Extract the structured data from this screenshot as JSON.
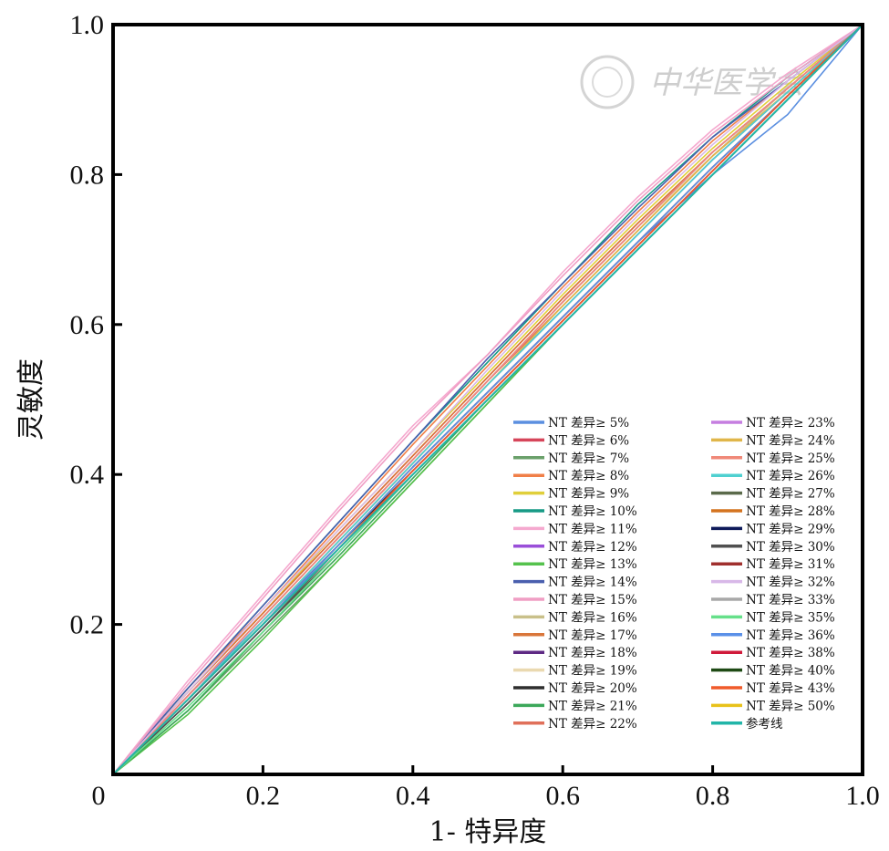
{
  "chart_data": {
    "type": "line",
    "xlabel": "1- 特异度",
    "ylabel": "灵敏度",
    "xlim": [
      0,
      1
    ],
    "ylim": [
      0,
      1
    ],
    "xticks": [
      "0",
      "0.2",
      "0.4",
      "0.6",
      "0.8",
      "1.0"
    ],
    "yticks": [
      "0.2",
      "0.4",
      "0.6",
      "0.8",
      "1.0"
    ],
    "grid": false,
    "legend_placement": "bottom-right",
    "watermark": "中华医学会",
    "series": [
      {
        "name": "NT 差异≥ 5%",
        "color": "#5b8fe0",
        "x": [
          0,
          0.1,
          0.2,
          0.3,
          0.4,
          0.5,
          0.6,
          0.7,
          0.8,
          0.9,
          1
        ],
        "y": [
          0,
          0.105,
          0.205,
          0.305,
          0.41,
          0.51,
          0.61,
          0.71,
          0.8,
          0.88,
          1
        ]
      },
      {
        "name": "NT 差异≥ 6%",
        "color": "#d6455a",
        "x": [
          0,
          0.1,
          0.2,
          0.3,
          0.4,
          0.5,
          0.6,
          0.7,
          0.8,
          0.9,
          1
        ],
        "y": [
          0,
          0.11,
          0.215,
          0.32,
          0.425,
          0.53,
          0.635,
          0.735,
          0.83,
          0.915,
          1
        ]
      },
      {
        "name": "NT 差异≥ 7%",
        "color": "#6aa06a",
        "x": [
          0,
          0.1,
          0.2,
          0.3,
          0.4,
          0.5,
          0.6,
          0.7,
          0.8,
          0.9,
          1
        ],
        "y": [
          0,
          0.085,
          0.185,
          0.285,
          0.39,
          0.495,
          0.6,
          0.7,
          0.8,
          0.9,
          1
        ]
      },
      {
        "name": "NT 差异≥ 8%",
        "color": "#f07f48",
        "x": [
          0,
          0.1,
          0.2,
          0.3,
          0.4,
          0.5,
          0.6,
          0.7,
          0.8,
          0.9,
          1
        ],
        "y": [
          0,
          0.115,
          0.22,
          0.33,
          0.44,
          0.545,
          0.65,
          0.75,
          0.845,
          0.925,
          1
        ]
      },
      {
        "name": "NT 差异≥ 9%",
        "color": "#e0cf3a",
        "x": [
          0,
          0.1,
          0.2,
          0.3,
          0.4,
          0.5,
          0.6,
          0.7,
          0.8,
          0.9,
          1
        ],
        "y": [
          0,
          0.11,
          0.215,
          0.325,
          0.43,
          0.535,
          0.64,
          0.74,
          0.835,
          0.92,
          1
        ]
      },
      {
        "name": "NT 差异≥ 10%",
        "color": "#179a85",
        "x": [
          0,
          0.1,
          0.2,
          0.3,
          0.4,
          0.5,
          0.6,
          0.7,
          0.8,
          0.9,
          1
        ],
        "y": [
          0,
          0.115,
          0.225,
          0.335,
          0.445,
          0.55,
          0.655,
          0.76,
          0.85,
          0.93,
          1
        ]
      },
      {
        "name": "NT 差异≥ 11%",
        "color": "#f5a9cf",
        "x": [
          0,
          0.1,
          0.2,
          0.3,
          0.4,
          0.5,
          0.6,
          0.7,
          0.8,
          0.9,
          1
        ],
        "y": [
          0,
          0.125,
          0.24,
          0.355,
          0.465,
          0.56,
          0.67,
          0.77,
          0.86,
          0.935,
          1
        ]
      },
      {
        "name": "NT 差异≥ 12%",
        "color": "#9a4fd9",
        "x": [
          0,
          0.1,
          0.2,
          0.3,
          0.4,
          0.5,
          0.6,
          0.7,
          0.8,
          0.9,
          1
        ],
        "y": [
          0,
          0.105,
          0.21,
          0.315,
          0.42,
          0.525,
          0.63,
          0.73,
          0.83,
          0.915,
          1
        ]
      },
      {
        "name": "NT 差异≥ 13%",
        "color": "#55c24d",
        "x": [
          0,
          0.1,
          0.2,
          0.3,
          0.4,
          0.5,
          0.6,
          0.7,
          0.8,
          0.9,
          1
        ],
        "y": [
          0,
          0.08,
          0.18,
          0.285,
          0.39,
          0.495,
          0.6,
          0.7,
          0.8,
          0.9,
          1
        ]
      },
      {
        "name": "NT 差异≥ 14%",
        "color": "#4a5fae",
        "x": [
          0,
          0.1,
          0.2,
          0.3,
          0.4,
          0.5,
          0.6,
          0.7,
          0.8,
          0.9,
          1
        ],
        "y": [
          0,
          0.115,
          0.225,
          0.335,
          0.445,
          0.555,
          0.655,
          0.755,
          0.85,
          0.925,
          1
        ]
      },
      {
        "name": "NT 差异≥ 15%",
        "color": "#f09ec4",
        "x": [
          0,
          0.1,
          0.2,
          0.3,
          0.4,
          0.5,
          0.6,
          0.7,
          0.8,
          0.9,
          1
        ],
        "y": [
          0,
          0.12,
          0.235,
          0.35,
          0.46,
          0.56,
          0.665,
          0.765,
          0.855,
          0.93,
          1
        ]
      },
      {
        "name": "NT 差异≥ 16%",
        "color": "#c9c08a",
        "x": [
          0,
          0.1,
          0.2,
          0.3,
          0.4,
          0.5,
          0.6,
          0.7,
          0.8,
          0.9,
          1
        ],
        "y": [
          0,
          0.105,
          0.21,
          0.315,
          0.42,
          0.525,
          0.63,
          0.73,
          0.825,
          0.915,
          1
        ]
      },
      {
        "name": "NT 差异≥ 17%",
        "color": "#d9763a",
        "x": [
          0,
          0.1,
          0.2,
          0.3,
          0.4,
          0.5,
          0.6,
          0.7,
          0.8,
          0.9,
          1
        ],
        "y": [
          0,
          0.11,
          0.215,
          0.32,
          0.425,
          0.53,
          0.635,
          0.735,
          0.83,
          0.915,
          1
        ]
      },
      {
        "name": "NT 差异≥ 18%",
        "color": "#5e2a84",
        "x": [
          0,
          0.1,
          0.2,
          0.3,
          0.4,
          0.5,
          0.6,
          0.7,
          0.8,
          0.9,
          1
        ],
        "y": [
          0,
          0.1,
          0.205,
          0.31,
          0.415,
          0.52,
          0.62,
          0.72,
          0.82,
          0.91,
          1
        ]
      },
      {
        "name": "NT 差异≥ 19%",
        "color": "#ead9b0",
        "x": [
          0,
          0.1,
          0.2,
          0.3,
          0.4,
          0.5,
          0.6,
          0.7,
          0.8,
          0.9,
          1
        ],
        "y": [
          0,
          0.105,
          0.21,
          0.315,
          0.42,
          0.525,
          0.63,
          0.73,
          0.825,
          0.91,
          1
        ]
      },
      {
        "name": "NT 差异≥ 20%",
        "color": "#2e2e2e",
        "x": [
          0,
          0.1,
          0.2,
          0.3,
          0.4,
          0.5,
          0.6,
          0.7,
          0.8,
          0.9,
          1
        ],
        "y": [
          0,
          0.1,
          0.2,
          0.305,
          0.405,
          0.505,
          0.605,
          0.705,
          0.805,
          0.905,
          1
        ]
      },
      {
        "name": "NT 差异≥ 21%",
        "color": "#3ca85a",
        "x": [
          0,
          0.1,
          0.2,
          0.3,
          0.4,
          0.5,
          0.6,
          0.7,
          0.8,
          0.9,
          1
        ],
        "y": [
          0,
          0.085,
          0.19,
          0.29,
          0.395,
          0.5,
          0.6,
          0.7,
          0.8,
          0.9,
          1
        ]
      },
      {
        "name": "NT 差异≥ 22%",
        "color": "#e0705a",
        "x": [
          0,
          0.1,
          0.2,
          0.3,
          0.4,
          0.5,
          0.6,
          0.7,
          0.8,
          0.9,
          1
        ],
        "y": [
          0,
          0.105,
          0.21,
          0.315,
          0.42,
          0.525,
          0.625,
          0.725,
          0.825,
          0.91,
          1
        ]
      },
      {
        "name": "NT 差异≥ 23%",
        "color": "#c57ee0",
        "x": [
          0,
          0.1,
          0.2,
          0.3,
          0.4,
          0.5,
          0.6,
          0.7,
          0.8,
          0.9,
          1
        ],
        "y": [
          0,
          0.105,
          0.21,
          0.315,
          0.42,
          0.525,
          0.63,
          0.73,
          0.83,
          0.915,
          1
        ]
      },
      {
        "name": "NT 差异≥ 24%",
        "color": "#e0b64a",
        "x": [
          0,
          0.1,
          0.2,
          0.3,
          0.4,
          0.5,
          0.6,
          0.7,
          0.8,
          0.9,
          1
        ],
        "y": [
          0,
          0.1,
          0.205,
          0.31,
          0.415,
          0.52,
          0.625,
          0.725,
          0.825,
          0.91,
          1
        ]
      },
      {
        "name": "NT 差异≥ 25%",
        "color": "#f08878",
        "x": [
          0,
          0.1,
          0.2,
          0.3,
          0.4,
          0.5,
          0.6,
          0.7,
          0.8,
          0.9,
          1
        ],
        "y": [
          0,
          0.105,
          0.21,
          0.315,
          0.42,
          0.525,
          0.63,
          0.73,
          0.83,
          0.915,
          1
        ]
      },
      {
        "name": "NT 差异≥ 26%",
        "color": "#4fd0d0",
        "x": [
          0,
          0.1,
          0.2,
          0.3,
          0.4,
          0.5,
          0.6,
          0.7,
          0.8,
          0.9,
          1
        ],
        "y": [
          0,
          0.1,
          0.205,
          0.31,
          0.415,
          0.52,
          0.62,
          0.72,
          0.82,
          0.91,
          1
        ]
      },
      {
        "name": "NT 差异≥ 27%",
        "color": "#5a6a4a",
        "x": [
          0,
          0.1,
          0.2,
          0.3,
          0.4,
          0.5,
          0.6,
          0.7,
          0.8,
          0.9,
          1
        ],
        "y": [
          0,
          0.095,
          0.195,
          0.3,
          0.405,
          0.505,
          0.605,
          0.705,
          0.805,
          0.905,
          1
        ]
      },
      {
        "name": "NT 差异≥ 28%",
        "color": "#d4731f",
        "x": [
          0,
          0.1,
          0.2,
          0.3,
          0.4,
          0.5,
          0.6,
          0.7,
          0.8,
          0.9,
          1
        ],
        "y": [
          0,
          0.1,
          0.2,
          0.305,
          0.41,
          0.51,
          0.61,
          0.71,
          0.81,
          0.905,
          1
        ]
      },
      {
        "name": "NT 差异≥ 29%",
        "color": "#0e1a5a",
        "x": [
          0,
          0.1,
          0.2,
          0.3,
          0.4,
          0.5,
          0.6,
          0.7,
          0.8,
          0.9,
          1
        ],
        "y": [
          0,
          0.1,
          0.2,
          0.3,
          0.4,
          0.5,
          0.6,
          0.7,
          0.8,
          0.9,
          1
        ]
      },
      {
        "name": "NT 差异≥ 30%",
        "color": "#505050",
        "x": [
          0,
          0.1,
          0.2,
          0.3,
          0.4,
          0.5,
          0.6,
          0.7,
          0.8,
          0.9,
          1
        ],
        "y": [
          0,
          0.095,
          0.195,
          0.295,
          0.4,
          0.5,
          0.6,
          0.7,
          0.8,
          0.9,
          1
        ]
      },
      {
        "name": "NT 差异≥ 31%",
        "color": "#a0302e",
        "x": [
          0,
          0.1,
          0.2,
          0.3,
          0.4,
          0.5,
          0.6,
          0.7,
          0.8,
          0.9,
          1
        ],
        "y": [
          0,
          0.1,
          0.2,
          0.305,
          0.41,
          0.51,
          0.61,
          0.71,
          0.81,
          0.905,
          1
        ]
      },
      {
        "name": "NT 差异≥ 32%",
        "color": "#d8b8e8",
        "x": [
          0,
          0.1,
          0.2,
          0.3,
          0.4,
          0.5,
          0.6,
          0.7,
          0.8,
          0.9,
          1
        ],
        "y": [
          0,
          0.11,
          0.22,
          0.325,
          0.43,
          0.54,
          0.645,
          0.745,
          0.84,
          0.925,
          1
        ]
      },
      {
        "name": "NT 差异≥ 33%",
        "color": "#a8a8a8",
        "x": [
          0,
          0.1,
          0.2,
          0.3,
          0.4,
          0.5,
          0.6,
          0.7,
          0.8,
          0.9,
          1
        ],
        "y": [
          0,
          0.1,
          0.2,
          0.3,
          0.405,
          0.505,
          0.605,
          0.705,
          0.805,
          0.905,
          1
        ]
      },
      {
        "name": "NT 差异≥ 35%",
        "color": "#66e08a",
        "x": [
          0,
          0.1,
          0.2,
          0.3,
          0.4,
          0.5,
          0.6,
          0.7,
          0.8,
          0.9,
          1
        ],
        "y": [
          0,
          0.09,
          0.19,
          0.295,
          0.4,
          0.5,
          0.6,
          0.7,
          0.8,
          0.9,
          1
        ]
      },
      {
        "name": "NT 差异≥ 36%",
        "color": "#5a90e8",
        "x": [
          0,
          0.1,
          0.2,
          0.3,
          0.4,
          0.5,
          0.6,
          0.7,
          0.8,
          0.9,
          1
        ],
        "y": [
          0,
          0.1,
          0.2,
          0.305,
          0.41,
          0.51,
          0.61,
          0.71,
          0.81,
          0.905,
          1
        ]
      },
      {
        "name": "NT 差异≥ 38%",
        "color": "#d01a3a",
        "x": [
          0,
          0.1,
          0.2,
          0.3,
          0.4,
          0.5,
          0.6,
          0.7,
          0.8,
          0.9,
          1
        ],
        "y": [
          0,
          0.1,
          0.2,
          0.3,
          0.405,
          0.505,
          0.605,
          0.705,
          0.805,
          0.905,
          1
        ]
      },
      {
        "name": "NT 差异≥ 40%",
        "color": "#1e4a14",
        "x": [
          0,
          0.1,
          0.2,
          0.3,
          0.4,
          0.5,
          0.6,
          0.7,
          0.8,
          0.9,
          1
        ],
        "y": [
          0,
          0.1,
          0.2,
          0.3,
          0.4,
          0.5,
          0.6,
          0.7,
          0.8,
          0.9,
          1
        ]
      },
      {
        "name": "NT 差异≥ 43%",
        "color": "#f05a2a",
        "x": [
          0,
          0.1,
          0.2,
          0.3,
          0.4,
          0.5,
          0.6,
          0.7,
          0.8,
          0.9,
          1
        ],
        "y": [
          0,
          0.1,
          0.2,
          0.3,
          0.405,
          0.505,
          0.605,
          0.705,
          0.805,
          0.905,
          1
        ]
      },
      {
        "name": "NT 差异≥ 50%",
        "color": "#e8c21a",
        "x": [
          0,
          0.1,
          0.2,
          0.3,
          0.4,
          0.5,
          0.6,
          0.7,
          0.8,
          0.9,
          1
        ],
        "y": [
          0,
          0.1,
          0.2,
          0.3,
          0.4,
          0.5,
          0.6,
          0.7,
          0.8,
          0.9,
          1
        ]
      },
      {
        "name": "参考线",
        "color": "#22b5a8",
        "x": [
          0,
          1
        ],
        "y": [
          0,
          1
        ]
      }
    ]
  }
}
